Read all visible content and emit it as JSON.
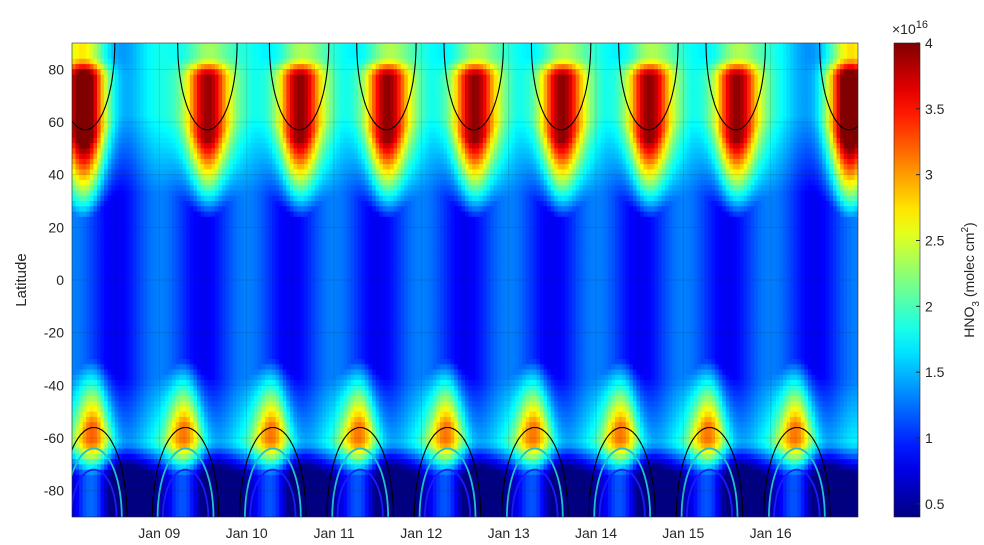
{
  "chart_data": {
    "type": "heatmap",
    "title": "",
    "xlabel": "",
    "ylabel": "Latitude",
    "x_ticks": [
      "Jan 09",
      "Jan 10",
      "Jan 11",
      "Jan 12",
      "Jan 13",
      "Jan 14",
      "Jan 15",
      "Jan 16"
    ],
    "x_tick_days": [
      9,
      10,
      11,
      12,
      13,
      14,
      15,
      16
    ],
    "xlim_days": [
      8.0,
      17.0
    ],
    "y_ticks": [
      80,
      60,
      40,
      20,
      0,
      -20,
      -40,
      -60,
      -80
    ],
    "ylim": [
      -90,
      90
    ],
    "grid": true,
    "colorscale": "jet",
    "colorbar": {
      "label_main": "HNO",
      "label_sub": "3",
      "label_units": " (molec cm",
      "label_sup": "2",
      "label_close": ")",
      "exponent_base": "×10",
      "exponent_power": "16",
      "ticks": [
        4,
        3.5,
        3,
        2.5,
        2,
        1.5,
        1,
        0.5
      ],
      "range": [
        0.4,
        4.0
      ]
    },
    "series": [
      {
        "values_description_omitted": true
      }
    ],
    "features": {
      "north_peak_days": [
        8.15,
        9.55,
        10.6,
        11.6,
        12.6,
        13.6,
        14.6,
        15.6,
        16.9
      ],
      "south_peak_days": [
        8.25,
        9.3,
        10.3,
        11.3,
        12.3,
        13.3,
        14.3,
        15.3,
        16.3
      ],
      "contours": [
        {
          "level": 2.3,
          "color": "#000000"
        },
        {
          "level": 1.8,
          "color": "#1fc0d0"
        },
        {
          "level": 1.2,
          "color": "#1a1aff"
        }
      ]
    }
  }
}
